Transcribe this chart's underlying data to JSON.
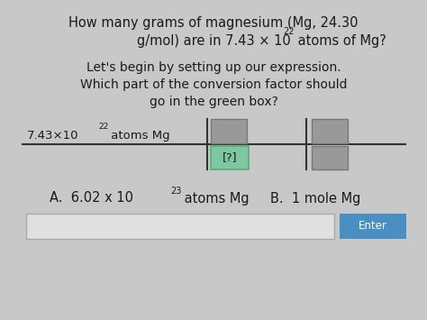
{
  "bg_color": "#c8c8c8",
  "text_color": "#1a1a1a",
  "line_color": "#333333",
  "green_box_color": "#7ec8a0",
  "green_box_edge": "#5aaa7a",
  "gray_box_color": "#999999",
  "gray_box_edge": "#777777",
  "enter_color": "#4a8fc4",
  "input_box_color": "#e0e0e0",
  "input_box_edge": "#aaaaaa",
  "title_line1": "How many grams of magnesium (Mg, 24.30",
  "title_line2_pre": "g/mol) are in 7.43 × 10",
  "title_exp": "22",
  "title_line2_post": " atoms of Mg?",
  "sub1": "Let's begin by setting up our expression.",
  "sub2": "Which part of the conversion factor should",
  "sub3": "go in the green box?",
  "expr_pre": "7.43×10",
  "expr_exp": "22",
  "expr_post": " atoms Mg",
  "ans_a_pre": "A.  6.02 x 10",
  "ans_a_exp": "23",
  "ans_a_post": " atoms Mg",
  "ans_b": "B.  1 mole Mg",
  "enter_label": "Enter"
}
